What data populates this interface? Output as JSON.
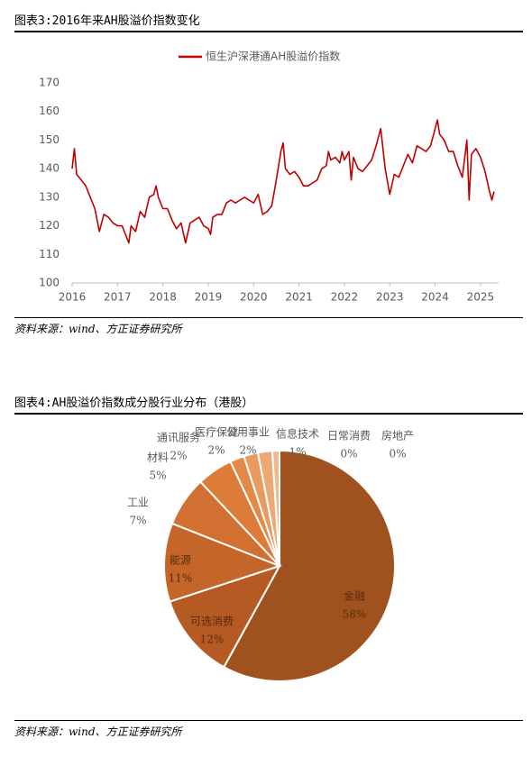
{
  "chart_data": [
    {
      "type": "line",
      "title": "图表3:2016年来AH股溢价指数变化",
      "source": "资料来源：wind、方正证券研究所",
      "x": [
        2016.0,
        2016.05,
        2016.1,
        2016.2,
        2016.3,
        2016.4,
        2016.5,
        2016.6,
        2016.7,
        2016.8,
        2016.9,
        2017.0,
        2017.1,
        2017.2,
        2017.25,
        2017.3,
        2017.4,
        2017.5,
        2017.6,
        2017.7,
        2017.8,
        2017.85,
        2017.9,
        2018.0,
        2018.1,
        2018.2,
        2018.3,
        2018.4,
        2018.5,
        2018.6,
        2018.7,
        2018.8,
        2018.9,
        2019.0,
        2019.05,
        2019.1,
        2019.2,
        2019.3,
        2019.4,
        2019.5,
        2019.6,
        2019.7,
        2019.8,
        2019.9,
        2020.0,
        2020.1,
        2020.2,
        2020.3,
        2020.4,
        2020.5,
        2020.6,
        2020.65,
        2020.7,
        2020.8,
        2020.9,
        2021.0,
        2021.1,
        2021.2,
        2021.3,
        2021.4,
        2021.5,
        2021.6,
        2021.65,
        2021.7,
        2021.8,
        2021.9,
        2021.95,
        2022.0,
        2022.1,
        2022.15,
        2022.2,
        2022.3,
        2022.4,
        2022.5,
        2022.6,
        2022.7,
        2022.8,
        2022.9,
        2023.0,
        2023.1,
        2023.2,
        2023.3,
        2023.4,
        2023.5,
        2023.6,
        2023.7,
        2023.8,
        2023.9,
        2024.0,
        2024.05,
        2024.1,
        2024.2,
        2024.3,
        2024.4,
        2024.5,
        2024.6,
        2024.7,
        2024.75,
        2024.8,
        2024.9,
        2025.0,
        2025.1,
        2025.2,
        2025.25,
        2025.3
      ],
      "series": [
        {
          "name": "恒生沪深港通AH股溢价指数",
          "color": "#c00000",
          "values": [
            140,
            147,
            138,
            136,
            134,
            130,
            126,
            118,
            124,
            123,
            121,
            120,
            120,
            116,
            114,
            120,
            118,
            125,
            123,
            130,
            131,
            134,
            130,
            126,
            126,
            122,
            119,
            121,
            114,
            121,
            122,
            123,
            120,
            119,
            117,
            123,
            124,
            124,
            128,
            129,
            128,
            129,
            130,
            129,
            128,
            131,
            124,
            125,
            127,
            136,
            146,
            149,
            140,
            138,
            139,
            137,
            134,
            134,
            135,
            136,
            140,
            141,
            146,
            143,
            144,
            142,
            146,
            143,
            146,
            136,
            144,
            140,
            139,
            141,
            143,
            148,
            154,
            140,
            131,
            138,
            137,
            141,
            145,
            142,
            148,
            147,
            146,
            148,
            154,
            157,
            152,
            150,
            146,
            146,
            141,
            137,
            150,
            129,
            145,
            147,
            144,
            139,
            132,
            129,
            132
          ]
        }
      ],
      "xlim": [
        2016,
        2025.4
      ],
      "xticks": [
        2016,
        2017,
        2018,
        2019,
        2020,
        2021,
        2022,
        2023,
        2024,
        2025
      ],
      "ylim": [
        100,
        170
      ],
      "yticks": [
        100,
        110,
        120,
        130,
        140,
        150,
        160,
        170
      ]
    },
    {
      "type": "pie",
      "title": "图表4:AH股溢价指数成分股行业分布（港股）",
      "source": "资料来源：wind、方正证券研究所",
      "categories": [
        "金融",
        "可选消费",
        "能源",
        "工业",
        "材料",
        "通讯服务",
        "医疗保健",
        "公用事业",
        "信息技术",
        "日常消费",
        "房地产"
      ],
      "values": [
        58,
        12,
        11,
        7,
        5,
        2,
        2,
        2,
        1,
        0,
        0
      ],
      "value_labels": [
        "58%",
        "12%",
        "11%",
        "7%",
        "5%",
        "2%",
        "2%",
        "2%",
        "1%",
        "0%",
        "0%"
      ],
      "colors": [
        "#a0521e",
        "#b45a22",
        "#c4652a",
        "#d17030",
        "#dc7c38",
        "#e38a48",
        "#e89a60",
        "#eca978",
        "#f0b890",
        "#f3c6a6",
        "#f6d4bc"
      ]
    }
  ]
}
